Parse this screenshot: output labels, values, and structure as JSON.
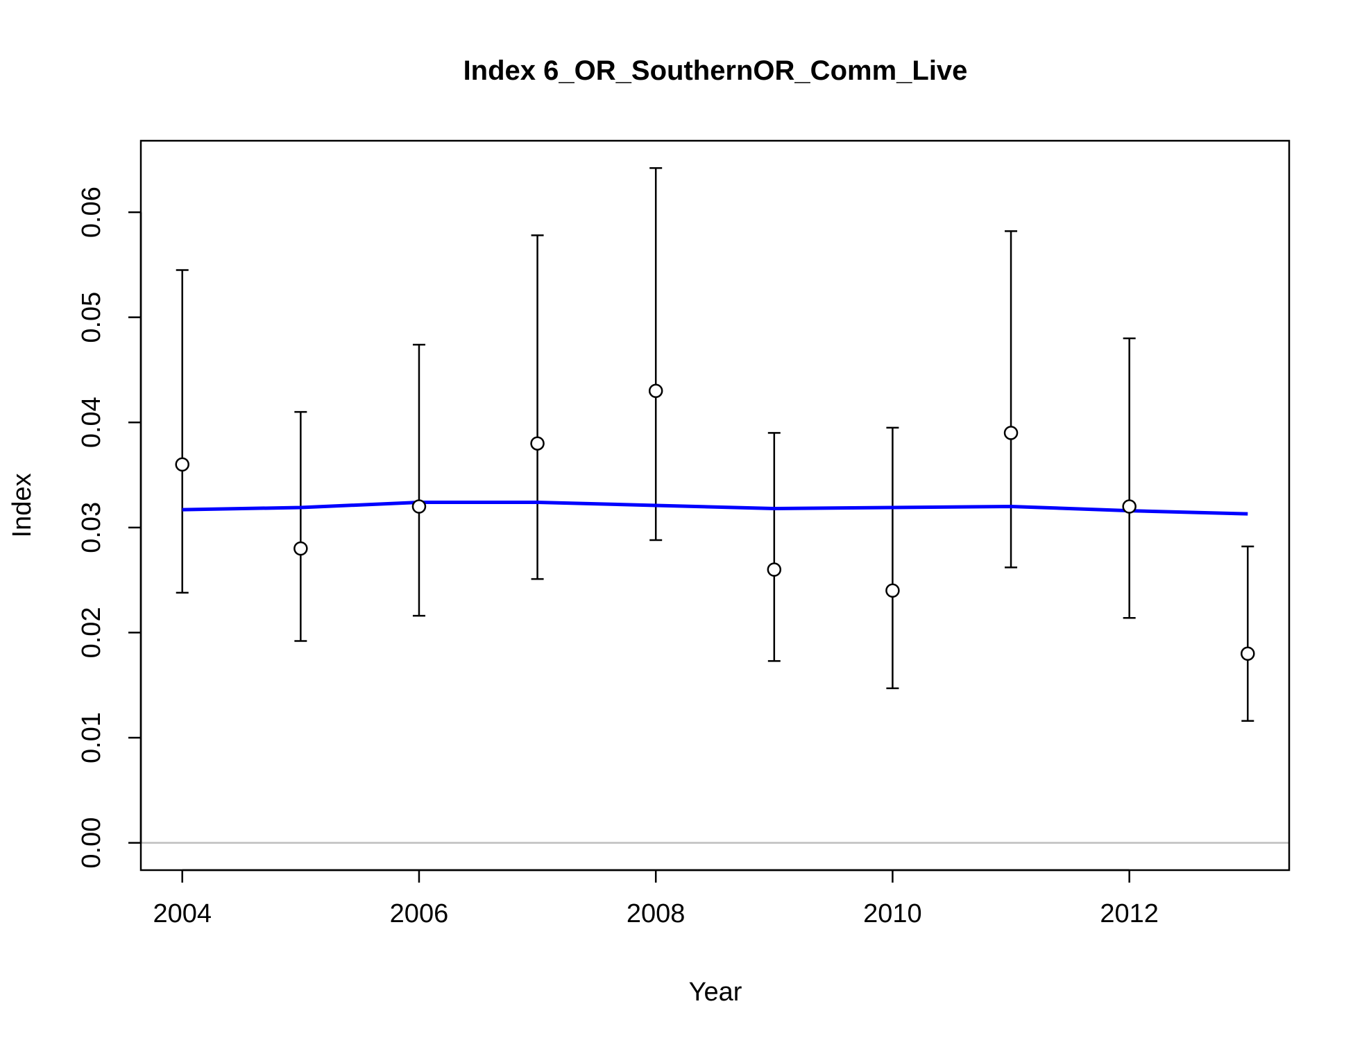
{
  "chart_data": {
    "type": "scatter",
    "title": "Index 6_OR_SouthernOR_Comm_Live",
    "xlabel": "Year",
    "ylabel": "Index",
    "xlim": [
      2003.65,
      2013.35
    ],
    "ylim": [
      -0.0026,
      0.0668
    ],
    "x_ticks": [
      2004,
      2006,
      2008,
      2010,
      2012
    ],
    "x_tick_labels": [
      "2004",
      "2006",
      "2008",
      "2010",
      "2012"
    ],
    "y_ticks": [
      0,
      0.01,
      0.02,
      0.03,
      0.04,
      0.05,
      0.06
    ],
    "y_tick_labels": [
      "0.00",
      "0.01",
      "0.02",
      "0.03",
      "0.04",
      "0.05",
      "0.06"
    ],
    "grid": false,
    "reference_line": {
      "y": 0,
      "color": "#bebebe"
    },
    "series": [
      {
        "kind": "observed",
        "marker": "open-circle",
        "color": "#000000",
        "x": [
          2004,
          2005,
          2006,
          2007,
          2008,
          2009,
          2010,
          2011,
          2012,
          2013
        ],
        "y": [
          0.036,
          0.028,
          0.032,
          0.038,
          0.043,
          0.026,
          0.024,
          0.039,
          0.032,
          0.018
        ],
        "lower": [
          0.0238,
          0.0192,
          0.0216,
          0.0251,
          0.0288,
          0.0173,
          0.0147,
          0.0262,
          0.0214,
          0.0116
        ],
        "upper": [
          0.0545,
          0.041,
          0.0474,
          0.0578,
          0.0642,
          0.039,
          0.0395,
          0.0582,
          0.048,
          0.0282
        ]
      },
      {
        "kind": "expected",
        "line": true,
        "color": "#0000ff",
        "x": [
          2004,
          2005,
          2006,
          2007,
          2008,
          2009,
          2010,
          2011,
          2012,
          2013
        ],
        "y": [
          0.0317,
          0.0319,
          0.0324,
          0.0324,
          0.0321,
          0.0318,
          0.0319,
          0.032,
          0.0316,
          0.0313
        ]
      }
    ]
  }
}
